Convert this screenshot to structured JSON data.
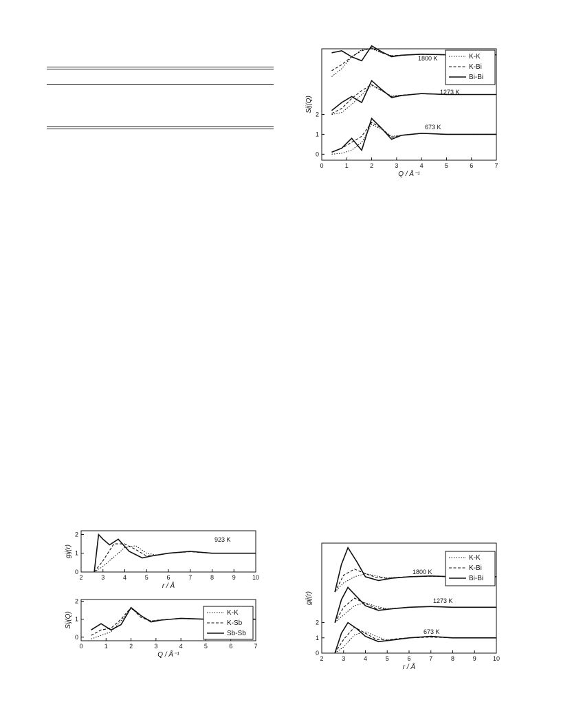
{
  "chart_data": [
    {
      "id": "fig_sq_kbi",
      "type": "line",
      "xlabel": "Q / Å⁻¹",
      "ylabel": "Sij(Q)",
      "xlim": [
        0,
        7
      ],
      "ylim": [
        -0.3,
        5.3
      ],
      "xticks": [
        "0",
        "1",
        "2",
        "3",
        "4",
        "5",
        "6",
        "7"
      ],
      "yticks": [
        "0",
        "1",
        "2"
      ],
      "legend": [
        "K-K",
        "K-Bi",
        "Bi-Bi"
      ],
      "legend_position": "top-right",
      "temperature_labels": [
        "1800 K",
        "1273 K",
        "673 K"
      ],
      "offsets": [
        4.0,
        2.0,
        0.0
      ],
      "series": [
        {
          "name": "K-K",
          "style": "dotted",
          "x": [
            0.4,
            0.8,
            1.2,
            1.6,
            2.0,
            2.4,
            2.8,
            3.2,
            4.0,
            5.0,
            6.0,
            7.0
          ],
          "y_by_temperature": {
            "673 K": [
              0.0,
              0.05,
              0.2,
              0.6,
              1.5,
              1.25,
              0.9,
              0.95,
              1.05,
              1.0,
              1.0,
              1.0
            ],
            "1273 K": [
              0.0,
              0.1,
              0.5,
              1.0,
              1.45,
              1.2,
              0.92,
              0.97,
              1.04,
              1.0,
              1.0,
              1.0
            ],
            "1800 K": [
              -0.1,
              0.3,
              0.9,
              1.25,
              1.3,
              1.1,
              0.95,
              0.98,
              1.02,
              1.0,
              1.0,
              1.0
            ]
          }
        },
        {
          "name": "K-Bi",
          "style": "dashed",
          "x": [
            0.4,
            0.8,
            1.2,
            1.6,
            2.0,
            2.4,
            2.8,
            3.2,
            4.0,
            5.0,
            6.0,
            7.0
          ],
          "y_by_temperature": {
            "673 K": [
              0.1,
              0.3,
              0.6,
              0.9,
              1.6,
              1.3,
              0.85,
              0.95,
              1.05,
              1.0,
              1.0,
              1.0
            ],
            "1273 K": [
              0.05,
              0.3,
              0.8,
              1.2,
              1.5,
              1.2,
              0.9,
              0.97,
              1.04,
              1.0,
              1.0,
              1.0
            ],
            "1800 K": [
              0.2,
              0.5,
              0.9,
              1.2,
              1.35,
              1.1,
              0.95,
              0.98,
              1.02,
              1.0,
              1.0,
              1.0
            ]
          }
        },
        {
          "name": "Bi-Bi",
          "style": "solid",
          "x": [
            0.4,
            0.8,
            1.2,
            1.6,
            2.0,
            2.4,
            2.8,
            3.2,
            4.0,
            5.0,
            6.0,
            7.0
          ],
          "y_by_temperature": {
            "673 K": [
              0.1,
              0.3,
              0.8,
              0.2,
              1.8,
              1.3,
              0.75,
              0.95,
              1.05,
              1.0,
              1.0,
              1.0
            ],
            "1273 K": [
              0.2,
              0.6,
              0.9,
              0.6,
              1.7,
              1.25,
              0.85,
              0.95,
              1.05,
              1.0,
              1.0,
              1.0
            ],
            "1800 K": [
              1.1,
              1.2,
              0.9,
              0.7,
              1.45,
              1.15,
              0.9,
              0.98,
              1.03,
              1.0,
              1.0,
              1.0
            ]
          }
        }
      ]
    },
    {
      "id": "fig_gr_ksb",
      "type": "line",
      "xlabel": "r / Å",
      "ylabel": "gij(r)",
      "xlim": [
        2,
        10
      ],
      "ylim": [
        0,
        2.2
      ],
      "xticks": [
        "2",
        "3",
        "4",
        "5",
        "6",
        "7",
        "8",
        "9",
        "10"
      ],
      "yticks": [
        "0",
        "1",
        "2"
      ],
      "temperature_labels": [
        "923 K"
      ],
      "series": [
        {
          "name": "K-K",
          "style": "dotted",
          "x": [
            2.6,
            3.0,
            3.5,
            4.0,
            4.5,
            5.0,
            5.5,
            6.0,
            7.0,
            8.0,
            9.0,
            10.0
          ],
          "y": [
            0.0,
            0.3,
            0.8,
            1.3,
            1.4,
            1.0,
            0.9,
            1.0,
            1.1,
            1.0,
            1.0,
            1.0
          ]
        },
        {
          "name": "K-Sb",
          "style": "dashed",
          "x": [
            2.6,
            3.0,
            3.5,
            4.0,
            4.5,
            5.0,
            5.5,
            6.0,
            7.0,
            8.0,
            9.0,
            10.0
          ],
          "y": [
            0.0,
            0.6,
            1.5,
            1.5,
            1.2,
            0.85,
            0.9,
            1.0,
            1.08,
            1.0,
            1.0,
            1.0
          ]
        },
        {
          "name": "Sb-Sb",
          "style": "solid",
          "x": [
            2.6,
            2.8,
            3.0,
            3.3,
            3.7,
            4.2,
            4.8,
            5.2,
            6.0,
            7.0,
            8.0,
            9.0,
            10.0
          ],
          "y": [
            0.0,
            2.0,
            1.75,
            1.45,
            1.75,
            1.1,
            0.75,
            0.85,
            1.0,
            1.1,
            1.0,
            1.0,
            1.0
          ]
        }
      ]
    },
    {
      "id": "fig_sq_ksb",
      "type": "line",
      "xlabel": "Q / Å⁻¹",
      "ylabel": "Sij(Q)",
      "xlim": [
        0,
        7
      ],
      "ylim": [
        -0.2,
        2.1
      ],
      "xticks": [
        "0",
        "1",
        "2",
        "3",
        "4",
        "5",
        "6",
        "7"
      ],
      "yticks": [
        "0",
        "1",
        "2"
      ],
      "legend": [
        "K-K",
        "K-Sb",
        "Sb-Sb"
      ],
      "legend_position": "right",
      "series": [
        {
          "name": "K-K",
          "style": "dotted",
          "x": [
            0.4,
            0.8,
            1.2,
            1.6,
            2.0,
            2.4,
            2.8,
            3.2,
            4.0,
            5.0,
            6.0,
            7.0
          ],
          "y": [
            -0.1,
            0.1,
            0.3,
            0.9,
            1.6,
            1.2,
            0.9,
            0.95,
            1.05,
            1.0,
            1.0,
            1.0
          ]
        },
        {
          "name": "K-Sb",
          "style": "dashed",
          "x": [
            0.4,
            0.8,
            1.2,
            1.6,
            2.0,
            2.4,
            2.8,
            3.2,
            4.0,
            5.0,
            6.0,
            7.0
          ],
          "y": [
            0.1,
            0.4,
            0.5,
            1.0,
            1.65,
            1.1,
            0.9,
            0.97,
            1.04,
            1.0,
            1.0,
            1.0
          ]
        },
        {
          "name": "Sb-Sb",
          "style": "solid",
          "x": [
            0.4,
            0.8,
            1.2,
            1.6,
            2.0,
            2.4,
            2.8,
            3.2,
            4.0,
            5.0,
            6.0,
            7.0
          ],
          "y": [
            0.4,
            0.75,
            0.4,
            0.7,
            1.65,
            1.2,
            0.85,
            0.95,
            1.05,
            1.0,
            1.0,
            1.0
          ]
        }
      ]
    },
    {
      "id": "fig_gr_kbi",
      "type": "line",
      "xlabel": "r / Å",
      "ylabel": "gij(r)",
      "xlim": [
        2,
        10
      ],
      "ylim": [
        0,
        7.2
      ],
      "xticks": [
        "2",
        "3",
        "4",
        "5",
        "6",
        "7",
        "8",
        "9",
        "10"
      ],
      "yticks": [
        "0",
        "1",
        "2"
      ],
      "legend": [
        "K-K",
        "K-Bi",
        "Bi-Bi"
      ],
      "legend_position": "top-right",
      "temperature_labels": [
        "1800 K",
        "1273 K",
        "673 K"
      ],
      "offsets": [
        4.0,
        2.0,
        0.0
      ],
      "series": [
        {
          "name": "K-K",
          "style": "dotted",
          "x": [
            2.6,
            3.0,
            3.5,
            4.0,
            4.5,
            5.0,
            5.5,
            6.0,
            7.0,
            8.0,
            9.0,
            10.0
          ],
          "y_by_temperature": {
            "673 K": [
              0.0,
              0.4,
              1.2,
              1.4,
              1.1,
              0.85,
              0.9,
              1.0,
              1.1,
              1.0,
              1.0,
              1.0
            ],
            "1273 K": [
              0.0,
              0.5,
              1.1,
              1.3,
              1.05,
              0.9,
              0.95,
              1.0,
              1.05,
              1.0,
              1.0,
              1.0
            ],
            "1800 K": [
              0.0,
              0.6,
              1.0,
              1.2,
              1.05,
              0.92,
              0.96,
              1.0,
              1.04,
              1.0,
              1.0,
              1.0
            ]
          }
        },
        {
          "name": "K-Bi",
          "style": "dashed",
          "x": [
            2.6,
            3.0,
            3.5,
            4.0,
            4.5,
            5.0,
            5.5,
            6.0,
            7.0,
            8.0,
            9.0,
            10.0
          ],
          "y_by_temperature": {
            "673 K": [
              0.0,
              0.9,
              1.7,
              1.3,
              0.9,
              0.85,
              0.95,
              1.0,
              1.05,
              1.0,
              1.0,
              1.0
            ],
            "1273 K": [
              0.0,
              1.0,
              1.6,
              1.25,
              0.92,
              0.88,
              0.95,
              1.0,
              1.04,
              1.0,
              1.0,
              1.0
            ],
            "1800 K": [
              0.0,
              1.1,
              1.5,
              1.2,
              0.95,
              0.9,
              0.96,
              1.0,
              1.03,
              1.0,
              1.0,
              1.0
            ]
          }
        },
        {
          "name": "Bi-Bi",
          "style": "solid",
          "x": [
            2.6,
            2.9,
            3.2,
            3.6,
            4.0,
            4.6,
            5.2,
            6.0,
            7.0,
            8.0,
            9.0,
            10.0
          ],
          "y_by_temperature": {
            "673 K": [
              0.0,
              1.3,
              2.0,
              1.6,
              1.1,
              0.75,
              0.85,
              1.0,
              1.1,
              1.0,
              1.0,
              1.0
            ],
            "1273 K": [
              0.0,
              1.5,
              2.3,
              1.7,
              1.1,
              0.8,
              0.9,
              1.0,
              1.05,
              1.0,
              1.0,
              1.0
            ],
            "1800 K": [
              0.0,
              1.8,
              2.9,
              2.0,
              1.0,
              0.75,
              0.9,
              1.0,
              1.05,
              1.0,
              1.0,
              1.0
            ]
          }
        }
      ]
    }
  ]
}
